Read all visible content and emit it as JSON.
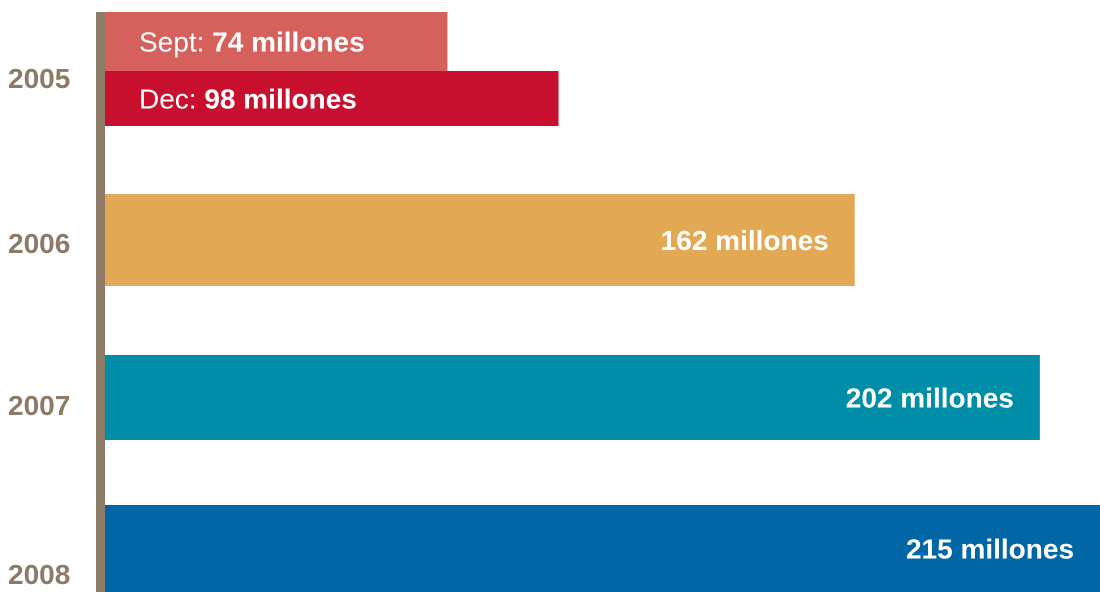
{
  "chart_data": {
    "type": "bar",
    "orientation": "horizontal",
    "unit": "millones",
    "xlim": [
      0,
      215
    ],
    "grid": false,
    "axis_color": "#8c7b67",
    "categories": [
      "2005",
      "2006",
      "2007",
      "2008"
    ],
    "bars": [
      {
        "category": "2005",
        "prefix": "Sept: ",
        "value_text": "74 millones",
        "value": 74,
        "color": "#d6615c"
      },
      {
        "category": "2005",
        "prefix": "Dec: ",
        "value_text": "98 millones",
        "value": 98,
        "color": "#c8102e"
      },
      {
        "category": "2006",
        "prefix": "",
        "value_text": "162 millones",
        "value": 162,
        "color": "#e3a854"
      },
      {
        "category": "2007",
        "prefix": "",
        "value_text": "202 millones",
        "value": 202,
        "color": "#008da8"
      },
      {
        "category": "2008",
        "prefix": "",
        "value_text": "215 millones",
        "value": 215,
        "color": "#0066a6"
      }
    ]
  }
}
